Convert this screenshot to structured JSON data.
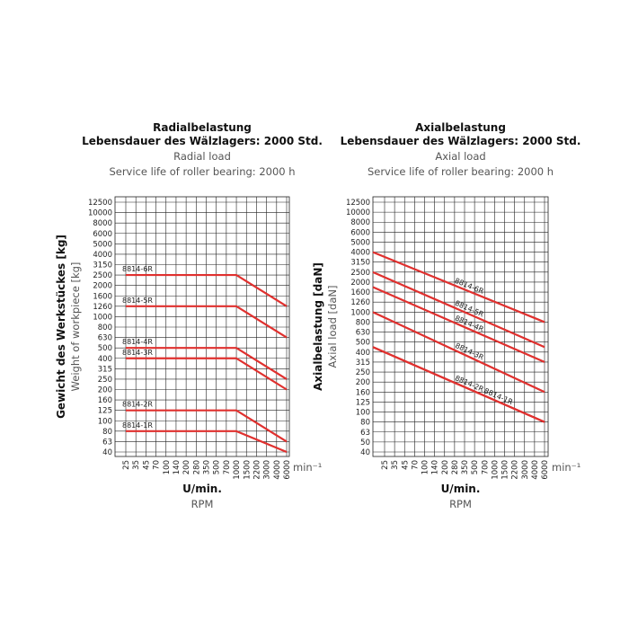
{
  "chart_data": [
    {
      "type": "line",
      "title": [
        "Radialbelastung",
        "Lebensdauer des Wälzlagers: 2000 Std."
      ],
      "subtitle": [
        "Radial load",
        "Service life of roller bearing: 2000 h"
      ],
      "ylabel": [
        "Gewicht des Werkstückes [kg]",
        "Weight of workpiece [kg]"
      ],
      "xlabel": [
        "U/min.",
        "RPM"
      ],
      "xunit": "min⁻¹",
      "xticks": [
        25,
        35,
        45,
        70,
        100,
        140,
        200,
        280,
        350,
        500,
        700,
        1000,
        1500,
        2200,
        3000,
        4000,
        6000
      ],
      "yticks": [
        12500,
        10000,
        8000,
        6000,
        5000,
        4000,
        3150,
        2500,
        2000,
        1600,
        1260,
        1000,
        800,
        630,
        500,
        400,
        315,
        250,
        200,
        160,
        125,
        100,
        80,
        63,
        40
      ],
      "grid": true,
      "x": [
        25,
        1000,
        6000
      ],
      "series": [
        {
          "name": "8814-6R",
          "color": "#e0302e",
          "values": [
            2500,
            2500,
            1260
          ]
        },
        {
          "name": "8814-5R",
          "color": "#e0302e",
          "values": [
            1260,
            1260,
            630
          ]
        },
        {
          "name": "8814-4R",
          "color": "#e0302e",
          "values": [
            500,
            500,
            250
          ]
        },
        {
          "name": "8814-3R",
          "color": "#e0302e",
          "values": [
            400,
            400,
            200
          ]
        },
        {
          "name": "8814-2R",
          "color": "#e0302e",
          "values": [
            125,
            125,
            63
          ]
        },
        {
          "name": "8814-1R",
          "color": "#e0302e",
          "values": [
            80,
            80,
            40
          ]
        }
      ]
    },
    {
      "type": "line",
      "title": [
        "Axialbelastung",
        "Lebensdauer des Wälzlagers: 2000 Std."
      ],
      "subtitle": [
        "Axial load",
        "Service life of roller bearing: 2000 h"
      ],
      "ylabel": [
        "Axialbelastung [daN]",
        "Axial load [daN]"
      ],
      "xlabel": [
        "U/min.",
        "RPM"
      ],
      "xunit": "min⁻¹",
      "xticks": [
        25,
        35,
        45,
        70,
        100,
        140,
        200,
        280,
        350,
        500,
        700,
        1000,
        1500,
        2200,
        3000,
        4000,
        6000
      ],
      "yticks": [
        12500,
        10000,
        8000,
        6000,
        5000,
        4000,
        3150,
        2500,
        2000,
        1600,
        1260,
        1000,
        800,
        630,
        500,
        400,
        315,
        250,
        200,
        160,
        125,
        100,
        80,
        63,
        50,
        40
      ],
      "grid": true,
      "x": [
        25,
        6000
      ],
      "series": [
        {
          "name": "8814-6R",
          "color": "#e0302e",
          "values": [
            4000,
            800
          ]
        },
        {
          "name": "8814-5R",
          "color": "#e0302e",
          "values": [
            2500,
            450
          ]
        },
        {
          "name": "8814-4R",
          "color": "#e0302e",
          "values": [
            1800,
            315
          ]
        },
        {
          "name": "8814-3R",
          "color": "#e0302e",
          "values": [
            1000,
            160
          ]
        },
        {
          "name": "8814-2R",
          "color": "#e0302e",
          "values": [
            450,
            80
          ]
        },
        {
          "name": "8814-1R",
          "color": "#e0302e",
          "values": [
            450,
            80
          ]
        }
      ]
    }
  ]
}
